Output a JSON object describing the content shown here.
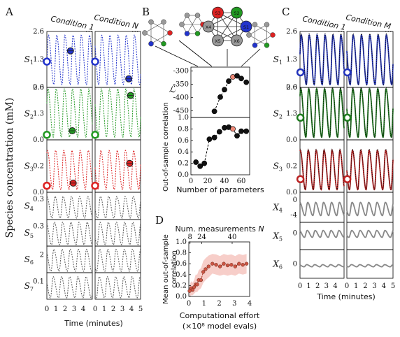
{
  "chart_data": [
    {
      "panel": "A",
      "type": "line",
      "column_titles": [
        "Condition 1",
        "Condition N"
      ],
      "ellipsis": "...",
      "ylabel": "Species concentration (mM)",
      "xlabel": "Time (minutes)",
      "x_ticks": [
        "0",
        "1",
        "2",
        "3",
        "4",
        "5"
      ],
      "xlim": [
        0,
        5
      ],
      "rows": [
        {
          "label_main": "S",
          "label_sub": "1",
          "ylim": [
            0,
            2.6
          ],
          "ticks": [
            "0.0",
            "1.3",
            "2.6"
          ],
          "tick_vals": [
            0,
            1.3,
            2.6
          ],
          "color": "#2233cc",
          "amp": 2.3,
          "period": 0.9,
          "markers": [
            [
              {
                "x": 0,
                "y": 1.2,
                "open": true
              },
              {
                "x": 2.6,
                "y": 1.7,
                "open": false
              }
            ],
            [
              {
                "x": 0,
                "y": 1.2,
                "open": true
              },
              {
                "x": 3.7,
                "y": 0.4,
                "open": false
              }
            ]
          ]
        },
        {
          "label_main": "S",
          "label_sub": "2",
          "ylim": [
            0,
            2.6
          ],
          "ticks": [
            "0.0",
            "1.3",
            "2.6"
          ],
          "tick_vals": [
            0,
            1.3,
            2.6
          ],
          "color": "#229922",
          "amp": 2.4,
          "period": 0.9,
          "markers": [
            [
              {
                "x": 0,
                "y": 0.25,
                "open": true
              },
              {
                "x": 2.8,
                "y": 0.45,
                "open": false
              }
            ],
            [
              {
                "x": 0,
                "y": 0.25,
                "open": true
              },
              {
                "x": 3.9,
                "y": 2.2,
                "open": false
              }
            ]
          ]
        },
        {
          "label_main": "S",
          "label_sub": "3",
          "ylim": [
            0,
            0.4
          ],
          "ticks": [
            "0.0",
            "0.2"
          ],
          "tick_vals": [
            0,
            0.2
          ],
          "color": "#dd2222",
          "amp": 0.3,
          "period": 0.9,
          "markers": [
            [
              {
                "x": 0,
                "y": 0.05,
                "open": true
              },
              {
                "x": 2.9,
                "y": 0.07,
                "open": false
              }
            ],
            [
              {
                "x": 0,
                "y": 0.05,
                "open": true
              },
              {
                "x": 3.8,
                "y": 0.22,
                "open": false
              }
            ]
          ]
        },
        {
          "label_main": "S",
          "label_sub": "4",
          "ylim": [
            0,
            0.4
          ],
          "ticks": [
            "0.3"
          ],
          "tick_vals": [
            0.3
          ],
          "color": "#555555",
          "amp": 0.32,
          "period": 0.9,
          "markers": [
            [],
            []
          ]
        },
        {
          "label_main": "S",
          "label_sub": "5",
          "ylim": [
            0,
            0.4
          ],
          "ticks": [
            "0.3"
          ],
          "tick_vals": [
            0.3
          ],
          "color": "#555555",
          "amp": 0.34,
          "period": 0.9,
          "markers": [
            [],
            []
          ]
        },
        {
          "label_main": "S",
          "label_sub": "6",
          "ylim": [
            0,
            3
          ],
          "ticks": [
            "2"
          ],
          "tick_vals": [
            2
          ],
          "color": "#555555",
          "amp": 2.5,
          "period": 0.9,
          "markers": [
            [],
            []
          ]
        },
        {
          "label_main": "S",
          "label_sub": "7",
          "ylim": [
            0,
            0.15
          ],
          "ticks": [
            "0.1"
          ],
          "tick_vals": [
            0.1
          ],
          "color": "#555555",
          "amp": 0.12,
          "period": 0.9,
          "markers": [
            [],
            []
          ]
        }
      ]
    },
    {
      "panel": "B",
      "type": "scatter",
      "network_labels": [
        "S3",
        "S2",
        "S1",
        "X6",
        "X5",
        "X4"
      ],
      "xlabel": "Number of parameters",
      "x_ticks": [
        "0",
        "20",
        "40",
        "60"
      ],
      "xlim": [
        0,
        70
      ],
      "top": {
        "ylabel": "ℒ",
        "ylim": [
          -475,
          -285
        ],
        "ticks": [
          "-300",
          "-350",
          "-400",
          "-450"
        ],
        "tick_vals": [
          -300,
          -350,
          -400,
          -450
        ],
        "points": [
          [
            28,
            -452
          ],
          [
            35,
            -398
          ],
          [
            40,
            -370
          ],
          [
            45,
            -338
          ],
          [
            50,
            -322
          ],
          [
            55,
            -318
          ],
          [
            60,
            -328
          ],
          [
            66,
            -342
          ]
        ],
        "highlight_index": 4
      },
      "bottom": {
        "ylabel": "Out-of-sample correlation",
        "ylim": [
          0,
          1.0
        ],
        "ticks": [
          "0.0",
          "0.2",
          "0.4",
          "0.6",
          "0.8",
          "1.0"
        ],
        "tick_vals": [
          0,
          0.2,
          0.4,
          0.6,
          0.8,
          1.0
        ],
        "points": [
          [
            6,
            0.22
          ],
          [
            11,
            0.15
          ],
          [
            16,
            0.2
          ],
          [
            22,
            0.62
          ],
          [
            28,
            0.65
          ],
          [
            34,
            0.75
          ],
          [
            40,
            0.82
          ],
          [
            45,
            0.83
          ],
          [
            50,
            0.8
          ],
          [
            55,
            0.68
          ],
          [
            60,
            0.76
          ],
          [
            66,
            0.76
          ]
        ],
        "highlight_index": 8
      }
    },
    {
      "panel": "C",
      "type": "line",
      "column_titles": [
        "Condition 1",
        "Condition M"
      ],
      "ellipsis": "...",
      "xlabel": "Time (minutes)",
      "x_ticks": [
        "0",
        "1",
        "2",
        "3",
        "4",
        "5"
      ],
      "xlim": [
        0,
        5
      ],
      "rows": [
        {
          "label_main": "S",
          "label_sub": "1",
          "ylim": [
            0,
            2.6
          ],
          "ticks": [
            "0.0",
            "1.3",
            "2.6"
          ],
          "tick_vals": [
            0,
            1.3,
            2.6
          ],
          "color": "#2233bb",
          "amp": 2.3,
          "open": 0.7
        },
        {
          "label_main": "S",
          "label_sub": "2",
          "ylim": [
            0,
            2.6
          ],
          "ticks": [
            "0.0",
            "1.3",
            "2.6"
          ],
          "tick_vals": [
            0,
            1.3,
            2.6
          ],
          "color": "#1e7a1e",
          "amp": 2.4,
          "open": 1.1
        },
        {
          "label_main": "S",
          "label_sub": "3",
          "ylim": [
            0,
            0.4
          ],
          "ticks": [
            "0.0",
            "0.2"
          ],
          "tick_vals": [
            0,
            0.2
          ],
          "color": "#bb2222",
          "amp": 0.3,
          "open": 0.1
        },
        {
          "label_main": "X",
          "label_sub": "4",
          "ylim": [
            -6,
            2
          ],
          "ticks": [
            "0",
            "-4"
          ],
          "tick_vals": [
            0,
            -4
          ],
          "color": "#888888",
          "amp": 3.5,
          "base": -4.2
        },
        {
          "label_main": "X",
          "label_sub": "5",
          "ylim": [
            -6,
            4
          ],
          "ticks": [
            "0"
          ],
          "tick_vals": [
            0
          ],
          "color": "#888888",
          "amp": 2.5,
          "base": -1.5
        },
        {
          "label_main": "X",
          "label_sub": "6",
          "ylim": [
            -4,
            4
          ],
          "ticks": [
            "0"
          ],
          "tick_vals": [
            0
          ],
          "color": "#888888",
          "amp": 0.6,
          "base": -0.8
        }
      ]
    },
    {
      "panel": "D",
      "type": "line",
      "top_axis_label": "Num. measurements",
      "top_axis_var": "N",
      "top_ticks": [
        "8",
        "24",
        "40"
      ],
      "top_tick_pos": [
        0.08,
        0.85,
        2.85
      ],
      "xlabel_line1": "Computational effort",
      "xlabel_line2": "(×10⁸ model evals)",
      "ylabel": "Mean out-of-sample correlation",
      "x_ticks": [
        "0",
        "1",
        "2",
        "3",
        "4"
      ],
      "xlim": [
        0,
        4
      ],
      "ylim": [
        0,
        1.0
      ],
      "y_ticks": [
        "0.0",
        "0.2",
        "0.4",
        "0.6",
        "0.8",
        "1.0"
      ],
      "y_tick_vals": [
        0,
        0.2,
        0.4,
        0.6,
        0.8,
        1.0
      ],
      "x": [
        0.05,
        0.15,
        0.25,
        0.35,
        0.45,
        0.55,
        0.65,
        0.8,
        0.95,
        1.1,
        1.3,
        1.55,
        1.8,
        2.05,
        2.3,
        2.55,
        2.8,
        3.05,
        3.3,
        3.55,
        3.8
      ],
      "y": [
        0.1,
        0.15,
        0.12,
        0.17,
        0.22,
        0.22,
        0.3,
        0.3,
        0.45,
        0.5,
        0.55,
        0.6,
        0.58,
        0.55,
        0.6,
        0.57,
        0.58,
        0.55,
        0.6,
        0.58,
        0.6
      ],
      "band_low": [
        0.0,
        0.02,
        0.02,
        0.05,
        0.08,
        0.08,
        0.12,
        0.15,
        0.25,
        0.3,
        0.35,
        0.42,
        0.4,
        0.38,
        0.4,
        0.38,
        0.4,
        0.38,
        0.42,
        0.4,
        0.42
      ],
      "band_high": [
        0.2,
        0.28,
        0.25,
        0.3,
        0.4,
        0.4,
        0.48,
        0.52,
        0.65,
        0.7,
        0.75,
        0.78,
        0.77,
        0.74,
        0.78,
        0.76,
        0.77,
        0.74,
        0.78,
        0.76,
        0.78
      ]
    }
  ],
  "panel_letters": {
    "a": "A",
    "b": "B",
    "c": "C",
    "d": "D"
  },
  "colors": {
    "band": "#f6c6c0",
    "marker": "#cc5544",
    "highlight": "#ee8877"
  }
}
